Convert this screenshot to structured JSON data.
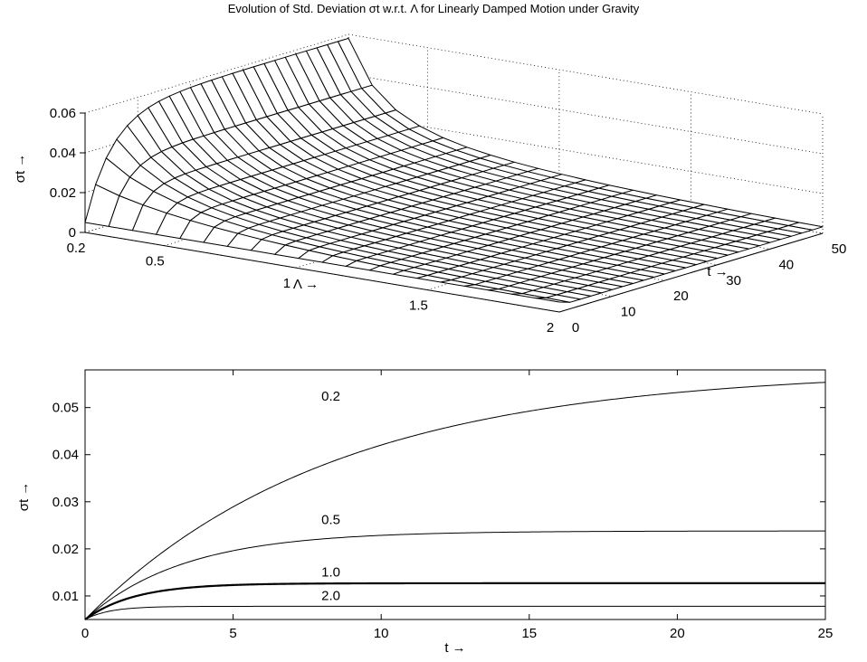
{
  "figure_title": "Evolution of Std. Deviation σt w.r.t. Λ for Linearly Damped Motion under Gravity",
  "chart_data": [
    {
      "type": "surface",
      "xlabel": "Λ →",
      "ylabel": "t →",
      "zlabel": "σt →",
      "xlim": [
        0.2,
        2
      ],
      "ylim": [
        0,
        50
      ],
      "zlim": [
        0,
        0.06
      ],
      "xticks": [
        "0.2",
        "0.5",
        "1",
        "1.5",
        "2"
      ],
      "yticks": [
        "0",
        "10",
        "20",
        "30",
        "40",
        "50"
      ],
      "zticks": [
        "0",
        "0.02",
        "0.04",
        "0.06"
      ],
      "grid": true,
      "model": {
        "sigma_initial": 0.005,
        "sigma_limit_lambda_0_2": 0.058
      },
      "lambda_values": [
        0.2,
        0.5,
        1.0,
        1.5,
        2.0
      ],
      "sigma_steady_state": [
        0.058,
        0.0238,
        0.0127,
        0.0095,
        0.0078
      ]
    },
    {
      "type": "line",
      "xlabel": "t →",
      "ylabel": "σt →",
      "xlim": [
        0,
        25
      ],
      "ylim": [
        0.005,
        0.058
      ],
      "xticks": [
        "0",
        "5",
        "10",
        "15",
        "20",
        "25"
      ],
      "yticks": [
        "0.01",
        "0.02",
        "0.03",
        "0.04",
        "0.05"
      ],
      "grid": false,
      "series": [
        {
          "name": "0.2",
          "lambda": 0.2,
          "sigma0": 0.005,
          "sigma_inf": 0.058,
          "bold": false
        },
        {
          "name": "0.5",
          "lambda": 0.5,
          "sigma0": 0.005,
          "sigma_inf": 0.0238,
          "bold": false
        },
        {
          "name": "1.0",
          "lambda": 1.0,
          "sigma0": 0.005,
          "sigma_inf": 0.0127,
          "bold": true
        },
        {
          "name": "2.0",
          "lambda": 2.0,
          "sigma0": 0.005,
          "sigma_inf": 0.0078,
          "bold": false
        }
      ],
      "series_labels": [
        {
          "text": "0.2",
          "t": 8.3,
          "sigma": 0.0515
        },
        {
          "text": "0.5",
          "t": 8.3,
          "sigma": 0.0253
        },
        {
          "text": "1.0",
          "t": 8.3,
          "sigma": 0.0141
        },
        {
          "text": "2.0",
          "t": 8.3,
          "sigma": 0.0091
        }
      ]
    }
  ]
}
